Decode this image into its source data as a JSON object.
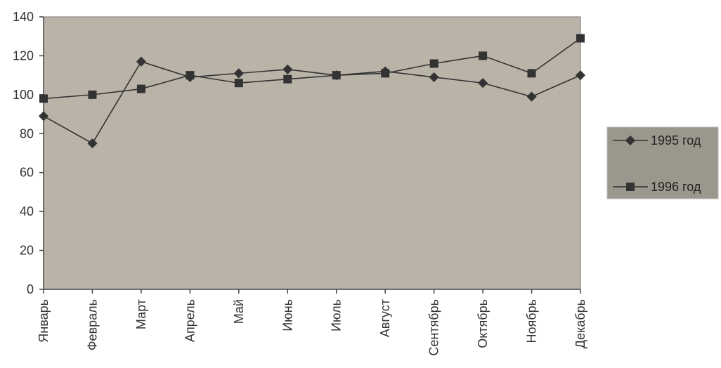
{
  "chart_data": {
    "type": "line",
    "title": "",
    "xlabel": "",
    "ylabel": "",
    "categories": [
      "Январь",
      "Февраль",
      "Март",
      "Апрель",
      "Май",
      "Июнь",
      "Июль",
      "Август",
      "Сентябрь",
      "Октябрь",
      "Ноябрь",
      "Декабрь"
    ],
    "ylim": [
      0,
      140
    ],
    "yticks": [
      0,
      20,
      40,
      60,
      80,
      100,
      120,
      140
    ],
    "grid": false,
    "legend_position": "right",
    "series": [
      {
        "name": "1995 год",
        "marker": "diamond",
        "color": "#333333",
        "values": [
          89,
          75,
          117,
          109,
          111,
          113,
          110,
          112,
          109,
          106,
          99,
          110
        ]
      },
      {
        "name": "1996 год",
        "marker": "square",
        "color": "#333333",
        "values": [
          98,
          100,
          103,
          110,
          106,
          108,
          110,
          111,
          116,
          120,
          111,
          129
        ]
      }
    ],
    "plot_background": "#b9b3a8"
  }
}
